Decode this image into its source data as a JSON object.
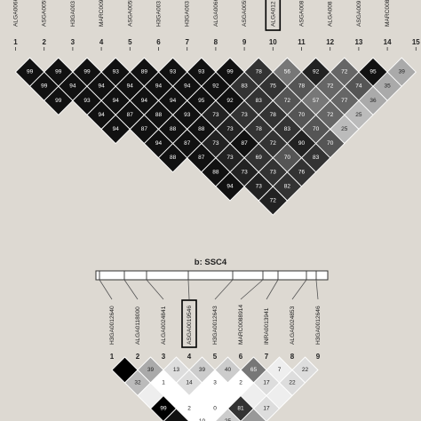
{
  "panel_a": {
    "markers": [
      "ALGA0066",
      "ASGA0055",
      "H3GA003",
      "MARC009",
      "ASGA0055",
      "H3GA003",
      "H3GA003",
      "ALGA0066",
      "ASGA0055",
      "ALGA012",
      "ASGA008",
      "ALGA008",
      "ASGA009",
      "MARC008",
      ""
    ],
    "indices": [
      "1",
      "2",
      "3",
      "4",
      "5",
      "6",
      "7",
      "8",
      "9",
      "10",
      "11",
      "12",
      "13",
      "14",
      "15"
    ],
    "highlight_marker_index": 10,
    "cells": [
      [
        1,
        2,
        99,
        "#111"
      ],
      [
        2,
        3,
        99,
        "#111"
      ],
      [
        3,
        4,
        99,
        "#111"
      ],
      [
        4,
        5,
        93,
        "#111"
      ],
      [
        5,
        6,
        89,
        "#111"
      ],
      [
        6,
        7,
        93,
        "#111"
      ],
      [
        7,
        8,
        93,
        "#111"
      ],
      [
        8,
        9,
        99,
        "#111"
      ],
      [
        9,
        10,
        78,
        "#333"
      ],
      [
        10,
        11,
        56,
        "#777"
      ],
      [
        11,
        12,
        92,
        "#222"
      ],
      [
        12,
        13,
        72,
        "#666"
      ],
      [
        13,
        14,
        95,
        "#111"
      ],
      [
        14,
        15,
        39,
        "#aaa"
      ],
      [
        1,
        3,
        99,
        "#111"
      ],
      [
        2,
        4,
        94,
        "#111"
      ],
      [
        3,
        5,
        94,
        "#111"
      ],
      [
        4,
        6,
        94,
        "#111"
      ],
      [
        5,
        7,
        94,
        "#111"
      ],
      [
        6,
        8,
        94,
        "#111"
      ],
      [
        7,
        9,
        92,
        "#111"
      ],
      [
        8,
        10,
        83,
        "#333"
      ],
      [
        9,
        11,
        75,
        "#333"
      ],
      [
        10,
        12,
        78,
        "#555"
      ],
      [
        11,
        13,
        72,
        "#666"
      ],
      [
        12,
        14,
        74,
        "#555"
      ],
      [
        13,
        15,
        35,
        "#aaa"
      ],
      [
        1,
        4,
        99,
        "#111"
      ],
      [
        2,
        5,
        93,
        "#111"
      ],
      [
        3,
        6,
        94,
        "#111"
      ],
      [
        4,
        7,
        94,
        "#111"
      ],
      [
        5,
        8,
        94,
        "#111"
      ],
      [
        6,
        9,
        95,
        "#111"
      ],
      [
        7,
        10,
        92,
        "#111"
      ],
      [
        8,
        11,
        83,
        "#333"
      ],
      [
        9,
        12,
        72,
        "#555"
      ],
      [
        10,
        13,
        57,
        "#777"
      ],
      [
        11,
        14,
        77,
        "#666"
      ],
      [
        12,
        15,
        36,
        "#aaa"
      ],
      [
        2,
        6,
        94,
        "#111"
      ],
      [
        3,
        7,
        87,
        "#111"
      ],
      [
        4,
        8,
        88,
        "#111"
      ],
      [
        5,
        9,
        93,
        "#111"
      ],
      [
        6,
        10,
        73,
        "#222"
      ],
      [
        7,
        11,
        73,
        "#333"
      ],
      [
        8,
        12,
        78,
        "#333"
      ],
      [
        9,
        13,
        70,
        "#555"
      ],
      [
        10,
        14,
        72,
        "#666"
      ],
      [
        11,
        15,
        25,
        "#bbb"
      ],
      [
        2,
        7,
        94,
        "#111"
      ],
      [
        3,
        8,
        87,
        "#111"
      ],
      [
        4,
        9,
        88,
        "#111"
      ],
      [
        5,
        10,
        88,
        "#111"
      ],
      [
        6,
        11,
        73,
        "#222"
      ],
      [
        7,
        12,
        78,
        "#333"
      ],
      [
        8,
        13,
        83,
        "#333"
      ],
      [
        9,
        14,
        70,
        "#555"
      ],
      [
        10,
        15,
        25,
        "#bbb"
      ],
      [
        3,
        9,
        94,
        "#111"
      ],
      [
        4,
        10,
        87,
        "#111"
      ],
      [
        5,
        11,
        73,
        "#222"
      ],
      [
        6,
        12,
        87,
        "#111"
      ],
      [
        7,
        13,
        72,
        "#333"
      ],
      [
        8,
        14,
        90,
        "#222"
      ],
      [
        9,
        15,
        70,
        "#555"
      ],
      [
        3,
        10,
        88,
        "#111"
      ],
      [
        4,
        11,
        87,
        "#111"
      ],
      [
        5,
        12,
        73,
        "#222"
      ],
      [
        6,
        13,
        69,
        "#333"
      ],
      [
        7,
        14,
        70,
        "#555"
      ],
      [
        8,
        15,
        83,
        "#333"
      ],
      [
        4,
        12,
        88,
        "#111"
      ],
      [
        5,
        13,
        73,
        "#222"
      ],
      [
        6,
        14,
        73,
        "#333"
      ],
      [
        7,
        15,
        76,
        "#333"
      ],
      [
        4,
        13,
        94,
        "#111"
      ],
      [
        5,
        14,
        73,
        "#222"
      ],
      [
        6,
        15,
        82,
        "#333"
      ],
      [
        5,
        15,
        72,
        "#222"
      ]
    ]
  },
  "panel_b": {
    "title": "b: SSC4",
    "markers": [
      "H3GA0012640",
      "ALGA0118000",
      "ALGA0024841",
      "ASGA0019546",
      "H3GA0012643",
      "MARC0088914",
      "INRA0013941",
      "ALGA0024853",
      "H3GA0012646"
    ],
    "indices": [
      "1",
      "2",
      "3",
      "4",
      "5",
      "6",
      "7",
      "8",
      "9"
    ],
    "highlight_marker_index": 4,
    "cells": [
      [
        1,
        2,
        "",
        "#000"
      ],
      [
        2,
        3,
        39,
        "#aaa"
      ],
      [
        3,
        4,
        13,
        "#ddd"
      ],
      [
        4,
        5,
        39,
        "#ccc"
      ],
      [
        5,
        6,
        40,
        "#ccc"
      ],
      [
        6,
        7,
        65,
        "#777"
      ],
      [
        7,
        8,
        7,
        "#eee"
      ],
      [
        8,
        9,
        22,
        "#ddd"
      ],
      [
        1,
        3,
        32,
        "#bbb"
      ],
      [
        2,
        4,
        1,
        "#fff"
      ],
      [
        3,
        5,
        14,
        "#ddd"
      ],
      [
        4,
        6,
        3,
        "#fff"
      ],
      [
        5,
        7,
        2,
        "#fff"
      ],
      [
        6,
        8,
        17,
        "#ddd"
      ],
      [
        7,
        9,
        22,
        "#ddd"
      ],
      [
        1,
        4,
        "",
        "#eee"
      ],
      [
        2,
        5,
        "",
        "#fff"
      ],
      [
        3,
        6,
        "",
        "#fff"
      ],
      [
        4,
        7,
        "",
        "#fff"
      ],
      [
        5,
        8,
        "",
        "#eee"
      ],
      [
        6,
        9,
        "",
        "#eee"
      ],
      [
        1,
        5,
        99,
        "#000"
      ],
      [
        2,
        6,
        2,
        "#fff"
      ],
      [
        3,
        7,
        0,
        "#fff"
      ],
      [
        4,
        8,
        81,
        "#333"
      ],
      [
        5,
        9,
        17,
        "#ddd"
      ],
      [
        1,
        6,
        "",
        "#111"
      ],
      [
        2,
        7,
        10,
        "#fff"
      ],
      [
        3,
        8,
        25,
        "#ccc"
      ],
      [
        4,
        9,
        "",
        "#999"
      ]
    ]
  }
}
